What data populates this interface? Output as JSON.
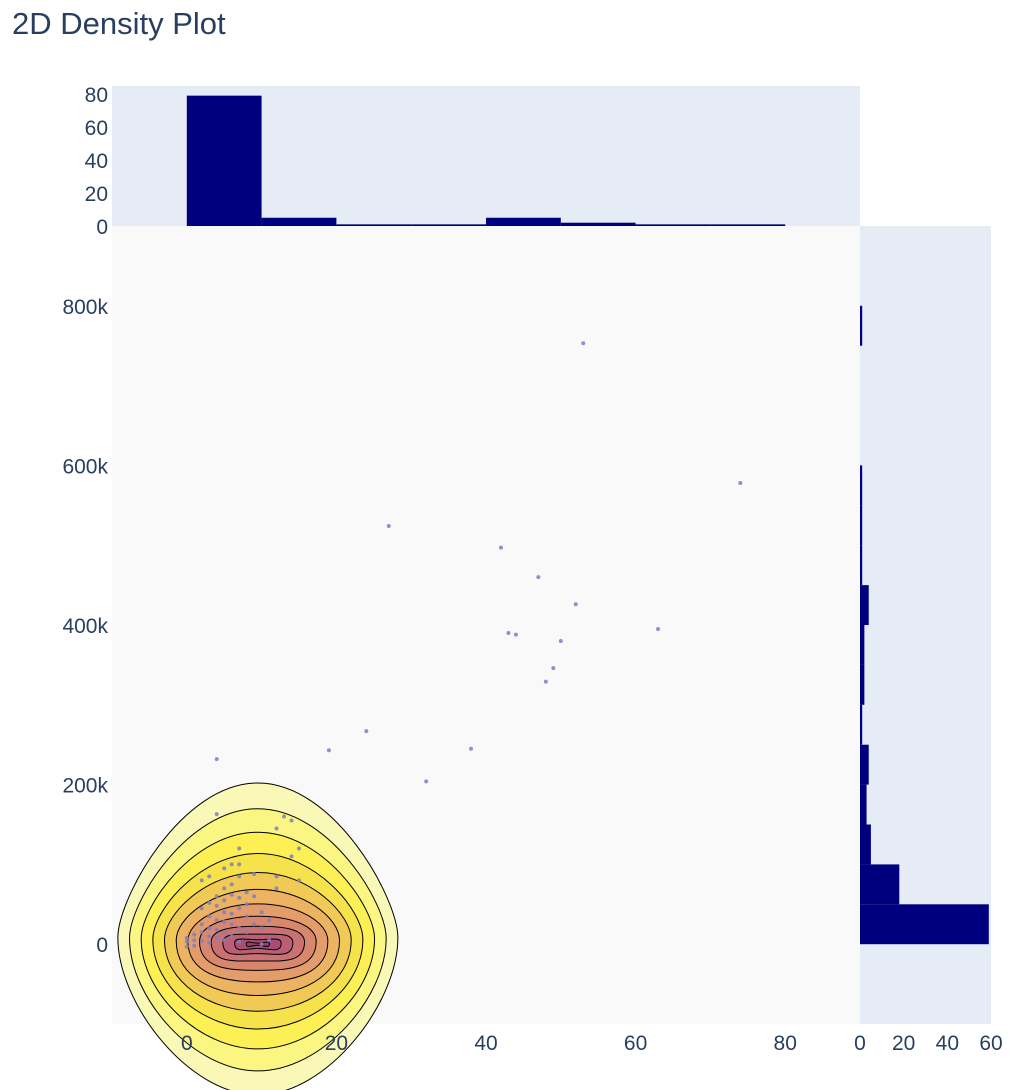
{
  "chart_data": {
    "type": "scatter",
    "title": "2D Density Plot",
    "xlabel": "",
    "ylabel": "",
    "xlim": [
      -10,
      90
    ],
    "ylim": [
      -100000,
      900000
    ],
    "x_ticks": [
      0,
      20,
      40,
      60,
      80
    ],
    "x_tick_labels": [
      "0",
      "20",
      "40",
      "60",
      "80"
    ],
    "y_ticks": [
      0,
      200000,
      400000,
      600000,
      800000
    ],
    "y_tick_labels": [
      "0",
      "200k",
      "400k",
      "600k",
      "800k"
    ],
    "colors": {
      "plot_bg": "#f9f9fa",
      "marginal_bg": "#e5ecf6",
      "bar": "#00007f",
      "point": "#7f7fbf",
      "contour_line": "#000000",
      "contour_fill": [
        "#f9f7ae",
        "#fbf47c",
        "#fcf050",
        "#f5e049",
        "#f0c857",
        "#ebb064",
        "#e29a6b",
        "#d68570",
        "#c97073",
        "#b95d74",
        "#a74b73",
        "#8d3e6e"
      ]
    },
    "density": {
      "center": [
        9.5,
        0
      ],
      "levels": 12
    },
    "scatter_points": [
      [
        0,
        3000
      ],
      [
        0,
        8000
      ],
      [
        0,
        -3000
      ],
      [
        1,
        5000
      ],
      [
        1,
        12000
      ],
      [
        1,
        -2000
      ],
      [
        2,
        4000
      ],
      [
        2,
        15000
      ],
      [
        2,
        25000
      ],
      [
        2,
        45000
      ],
      [
        3,
        2000
      ],
      [
        3,
        10000
      ],
      [
        3,
        20000
      ],
      [
        3,
        35000
      ],
      [
        3,
        52000
      ],
      [
        4,
        8000
      ],
      [
        4,
        18000
      ],
      [
        4,
        30000
      ],
      [
        4,
        48000
      ],
      [
        4,
        60000
      ],
      [
        5,
        5000
      ],
      [
        5,
        15000
      ],
      [
        5,
        28000
      ],
      [
        5,
        40000
      ],
      [
        5,
        55000
      ],
      [
        5,
        70000
      ],
      [
        5,
        95000
      ],
      [
        6,
        10000
      ],
      [
        6,
        25000
      ],
      [
        6,
        38000
      ],
      [
        6,
        62000
      ],
      [
        6,
        75000
      ],
      [
        7,
        3000
      ],
      [
        7,
        20000
      ],
      [
        7,
        45000
      ],
      [
        7,
        58000
      ],
      [
        7,
        85000
      ],
      [
        7,
        100000
      ],
      [
        7,
        120000
      ],
      [
        8,
        15000
      ],
      [
        8,
        35000
      ],
      [
        8,
        50000
      ],
      [
        8,
        65000
      ],
      [
        9,
        25000
      ],
      [
        9,
        60000
      ],
      [
        9,
        88000
      ],
      [
        10,
        0
      ],
      [
        10,
        20000
      ],
      [
        10,
        40000
      ],
      [
        11,
        5000
      ],
      [
        11,
        30000
      ],
      [
        12,
        70000
      ],
      [
        12,
        85000
      ],
      [
        12,
        145000
      ],
      [
        13,
        160000
      ],
      [
        14,
        110000
      ],
      [
        14,
        155000
      ],
      [
        15,
        120000
      ],
      [
        15,
        80000
      ],
      [
        2,
        80000
      ],
      [
        3,
        85000
      ],
      [
        4,
        163000
      ],
      [
        4,
        232000
      ],
      [
        19,
        243000
      ],
      [
        24,
        267000
      ],
      [
        27,
        524000
      ],
      [
        32,
        204000
      ],
      [
        38,
        245000
      ],
      [
        42,
        497000
      ],
      [
        43,
        390000
      ],
      [
        44,
        388000
      ],
      [
        47,
        460000
      ],
      [
        48,
        329000
      ],
      [
        49,
        346000
      ],
      [
        50,
        380000
      ],
      [
        52,
        426000
      ],
      [
        53,
        753000
      ],
      [
        63,
        395000
      ],
      [
        74,
        578000
      ],
      [
        6,
        100000
      ]
    ],
    "histogram_x": {
      "bin_edges": [
        0,
        10,
        20,
        30,
        40,
        50,
        60,
        70,
        80
      ],
      "counts": [
        79,
        5,
        1,
        1,
        5,
        2,
        1,
        1
      ],
      "yaxis_ticks": [
        0,
        20,
        40,
        60,
        80
      ],
      "yaxis_tick_labels": [
        "0",
        "20",
        "40",
        "60",
        "80"
      ],
      "yaxis_range": [
        0,
        80
      ]
    },
    "histogram_y": {
      "bin_edges": [
        0,
        50000,
        100000,
        150000,
        200000,
        250000,
        300000,
        350000,
        400000,
        450000,
        500000,
        550000,
        600000,
        650000,
        700000,
        750000,
        800000
      ],
      "counts": [
        59,
        18,
        5,
        3,
        4,
        1,
        2,
        2,
        4,
        1,
        1,
        1,
        0,
        0,
        0,
        1
      ],
      "xaxis_ticks": [
        0,
        20,
        40,
        60
      ],
      "xaxis_tick_labels": [
        "0",
        "20",
        "40",
        "60"
      ],
      "xaxis_range": [
        0,
        60
      ]
    }
  }
}
